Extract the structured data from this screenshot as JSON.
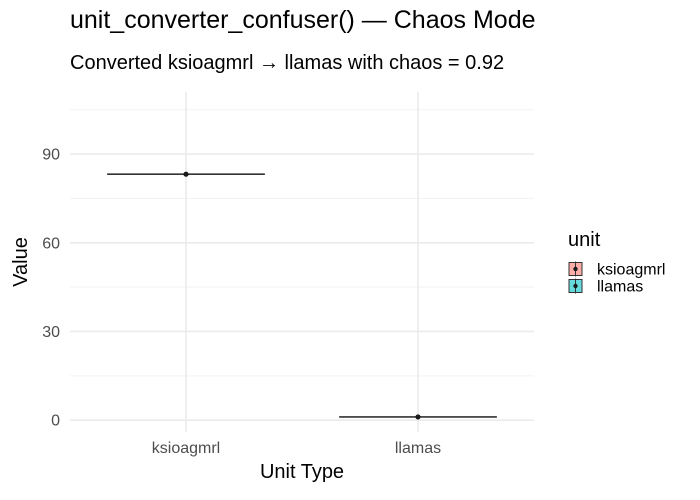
{
  "chart_data": {
    "type": "boxplot",
    "title": "unit_converter_confuser() — Chaos Mode",
    "subtitle": "Converted ksioagmrl → llamas with chaos = 0.92",
    "xlabel": "Unit Type",
    "ylabel": "Value",
    "categories": [
      "ksioagmrl",
      "llamas"
    ],
    "values": [
      83.2,
      1.1
    ],
    "ylim": [
      -4,
      111
    ],
    "yticks": [
      0,
      30,
      60,
      90
    ],
    "grid": true,
    "legend": {
      "title": "unit",
      "placement": "right",
      "entries": [
        "ksioagmrl",
        "llamas"
      ],
      "colors": [
        "#F8766D",
        "#00BFC4"
      ]
    }
  }
}
